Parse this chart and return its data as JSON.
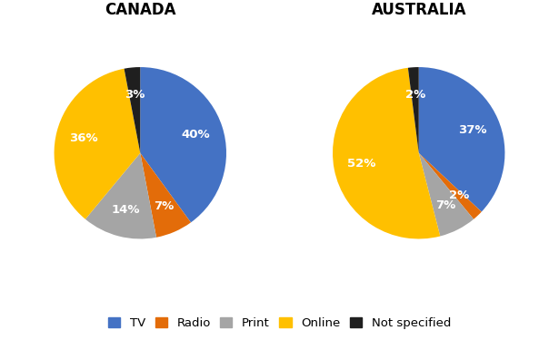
{
  "canada": {
    "title": "CANADA",
    "values": [
      40,
      7,
      14,
      36,
      3
    ],
    "labels": [
      "40%",
      "7%",
      "14%",
      "36%",
      "3%"
    ]
  },
  "australia": {
    "title": "AUSTRALIA",
    "values": [
      37,
      2,
      7,
      52,
      2
    ],
    "labels": [
      "37%",
      "2%",
      "7%",
      "52%",
      "2%"
    ]
  },
  "colors": [
    "#4472C4",
    "#E36C09",
    "#A5A5A5",
    "#FFC000",
    "#1F1F1F"
  ],
  "legend_labels": [
    "TV",
    "Radio",
    "Print",
    "Online",
    "Not specified"
  ],
  "background_color": "#FFFFFF",
  "title_fontsize": 12,
  "label_fontsize": 9.5,
  "legend_fontsize": 9.5
}
